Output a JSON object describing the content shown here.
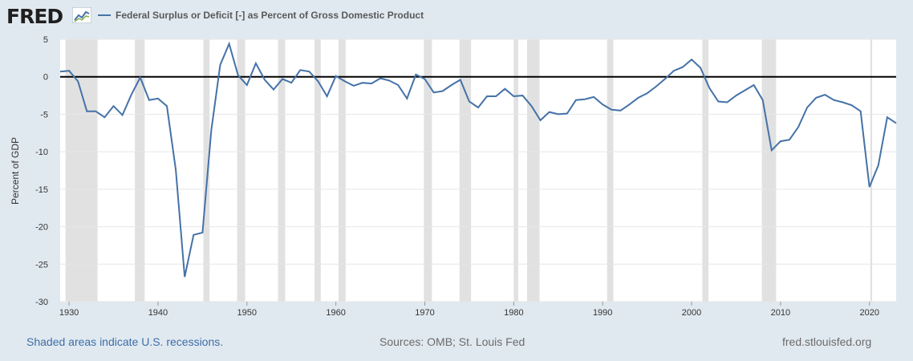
{
  "header": {
    "logo_text": "FRED",
    "series_title": "Federal Surplus or Deficit [-] as Percent of Gross Domestic Product"
  },
  "footer": {
    "recession_note": "Shaded areas indicate U.S. recessions.",
    "sources": "Sources: OMB; St. Louis Fed",
    "site": "fred.stlouisfed.org"
  },
  "colors": {
    "line": "#4572a7",
    "recession": "#e1e1e1",
    "zero_line": "#000000",
    "background": "#e1e9f0"
  },
  "chart_data": {
    "type": "line",
    "title": "Federal Surplus or Deficit [-] as Percent of Gross Domestic Product",
    "xlabel": "",
    "ylabel": "Percent of GDP",
    "xlim": [
      1929,
      2023
    ],
    "ylim": [
      -30,
      5
    ],
    "x_ticks": [
      1930,
      1940,
      1950,
      1960,
      1970,
      1980,
      1990,
      2000,
      2010,
      2020
    ],
    "y_ticks": [
      5,
      0,
      -5,
      -10,
      -15,
      -20,
      -25,
      -30
    ],
    "grid": "horizontal",
    "reference_line": 0,
    "recessions": [
      [
        1929.6,
        1933.2
      ],
      [
        1937.4,
        1938.5
      ],
      [
        1945.1,
        1945.8
      ],
      [
        1948.9,
        1949.8
      ],
      [
        1953.5,
        1954.3
      ],
      [
        1957.6,
        1958.3
      ],
      [
        1960.3,
        1961.1
      ],
      [
        1969.9,
        1970.8
      ],
      [
        1973.9,
        1975.2
      ],
      [
        1980.0,
        1980.5
      ],
      [
        1981.5,
        1982.9
      ],
      [
        1990.5,
        1991.2
      ],
      [
        2001.2,
        2001.9
      ],
      [
        2007.9,
        2009.5
      ],
      [
        2020.1,
        2020.3
      ]
    ],
    "series": [
      {
        "x": [
          1929,
          1930,
          1931,
          1932,
          1933,
          1934,
          1935,
          1936,
          1937,
          1938,
          1939,
          1940,
          1941,
          1942,
          1943,
          1944,
          1945,
          1946,
          1947,
          1948,
          1949,
          1950,
          1951,
          1952,
          1953,
          1954,
          1955,
          1956,
          1957,
          1958,
          1959,
          1960,
          1961,
          1962,
          1963,
          1964,
          1965,
          1966,
          1967,
          1968,
          1969,
          1970,
          1971,
          1972,
          1973,
          1974,
          1975,
          1976,
          1977,
          1978,
          1979,
          1980,
          1981,
          1982,
          1983,
          1984,
          1985,
          1986,
          1987,
          1988,
          1989,
          1990,
          1991,
          1992,
          1993,
          1994,
          1995,
          1996,
          1997,
          1998,
          1999,
          2000,
          2001,
          2002,
          2003,
          2004,
          2005,
          2006,
          2007,
          2008,
          2009,
          2010,
          2011,
          2012,
          2013,
          2014,
          2015,
          2016,
          2017,
          2018,
          2019,
          2020,
          2021,
          2022,
          2023
        ],
        "values": [
          0.7,
          0.8,
          -0.6,
          -4.6,
          -4.6,
          -5.4,
          -3.9,
          -5.1,
          -2.4,
          -0.1,
          -3.1,
          -2.9,
          -3.9,
          -12.4,
          -26.7,
          -21.1,
          -20.8,
          -7.1,
          1.6,
          4.4,
          0.2,
          -1.1,
          1.8,
          -0.4,
          -1.7,
          -0.3,
          -0.8,
          0.9,
          0.7,
          -0.6,
          -2.6,
          0.1,
          -0.6,
          -1.2,
          -0.8,
          -0.9,
          -0.2,
          -0.5,
          -1.1,
          -2.9,
          0.3,
          -0.3,
          -2.1,
          -1.9,
          -1.1,
          -0.4,
          -3.3,
          -4.1,
          -2.6,
          -2.6,
          -1.6,
          -2.6,
          -2.5,
          -3.9,
          -5.8,
          -4.7,
          -5.0,
          -4.9,
          -3.1,
          -3.0,
          -2.7,
          -3.7,
          -4.4,
          -4.5,
          -3.7,
          -2.8,
          -2.2,
          -1.3,
          -0.3,
          0.8,
          1.3,
          2.3,
          1.2,
          -1.5,
          -3.3,
          -3.4,
          -2.5,
          -1.8,
          -1.1,
          -3.1,
          -9.8,
          -8.6,
          -8.4,
          -6.7,
          -4.1,
          -2.8,
          -2.4,
          -3.1,
          -3.4,
          -3.8,
          -4.6,
          -14.7,
          -11.8,
          -5.4,
          -6.2
        ]
      }
    ]
  }
}
